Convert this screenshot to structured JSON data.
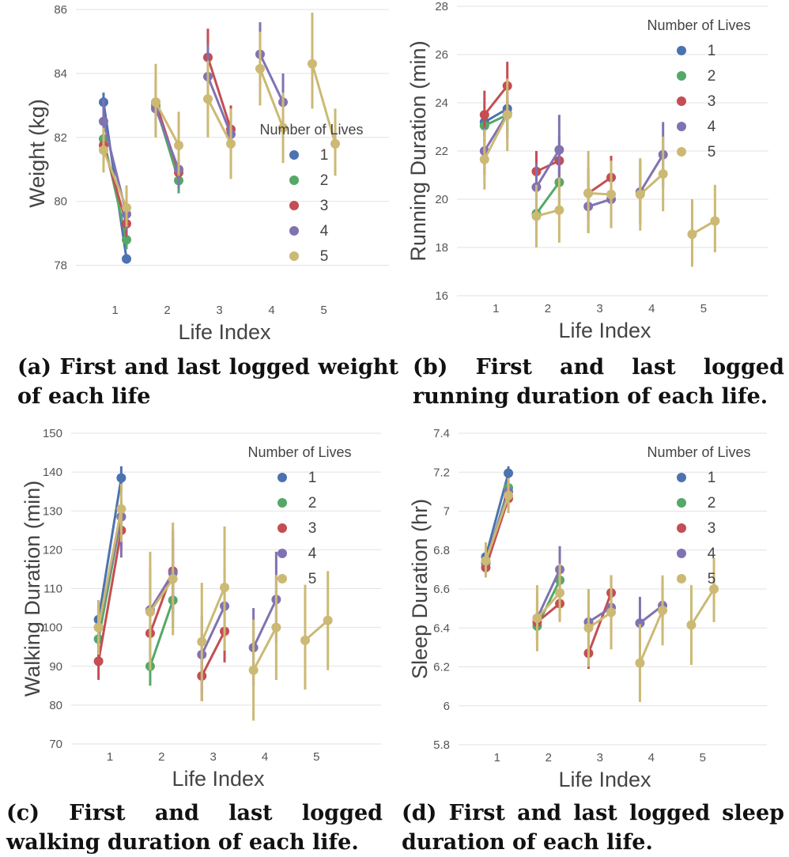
{
  "colors": [
    "#4c72b0",
    "#55a868",
    "#c44e52",
    "#8172b2",
    "#ccb974"
  ],
  "legend_title": "Number of Lives",
  "legend_labels": [
    "1",
    "2",
    "3",
    "4",
    "5"
  ],
  "chart_data": [
    {
      "type": "line",
      "xlabel": "Life Index",
      "ylabel": "Weight (kg)",
      "categories": [
        "1",
        "2",
        "3",
        "4",
        "5"
      ],
      "ylim": [
        77,
        86
      ],
      "yticks": [
        78,
        80,
        82,
        84,
        86
      ],
      "grid": "horizontal",
      "legend_position": "center-right",
      "caption": "(a) First and last logged weight of each life",
      "series": [
        {
          "name": "1",
          "segments": [
            {
              "life": 1,
              "first": [
                83.1,
                82.7,
                83.4
              ],
              "last": [
                78.2,
                78.05,
                78.35
              ]
            }
          ]
        },
        {
          "name": "2",
          "segments": [
            {
              "life": 1,
              "first": [
                81.95,
                81.6,
                82.3
              ],
              "last": [
                78.8,
                78.5,
                79.2
              ]
            },
            {
              "life": 2,
              "first": [
                83.0,
                82.2,
                83.9
              ],
              "last": [
                80.65,
                80.25,
                81.05
              ]
            }
          ]
        },
        {
          "name": "3",
          "segments": [
            {
              "life": 1,
              "first": [
                81.75,
                81.2,
                82.3
              ],
              "last": [
                79.3,
                78.9,
                79.7
              ]
            },
            {
              "life": 2,
              "first": [
                83.1,
                82.1,
                83.9
              ],
              "last": [
                80.9,
                80.5,
                81.3
              ]
            },
            {
              "life": 3,
              "first": [
                84.5,
                83.5,
                85.4
              ],
              "last": [
                82.25,
                81.5,
                83.0
              ]
            }
          ]
        },
        {
          "name": "4",
          "segments": [
            {
              "life": 1,
              "first": [
                82.5,
                81.8,
                83.2
              ],
              "last": [
                79.6,
                79.1,
                80.1
              ]
            },
            {
              "life": 2,
              "first": [
                82.9,
                82.0,
                83.8
              ],
              "last": [
                81.0,
                80.4,
                81.6
              ]
            },
            {
              "life": 3,
              "first": [
                83.9,
                82.9,
                84.9
              ],
              "last": [
                82.1,
                81.4,
                82.8
              ]
            },
            {
              "life": 4,
              "first": [
                84.6,
                83.6,
                85.6
              ],
              "last": [
                83.1,
                82.3,
                84.0
              ]
            }
          ]
        },
        {
          "name": "5",
          "segments": [
            {
              "life": 1,
              "first": [
                81.6,
                80.9,
                82.3
              ],
              "last": [
                79.8,
                79.2,
                80.5
              ]
            },
            {
              "life": 2,
              "first": [
                83.1,
                82.0,
                84.3
              ],
              "last": [
                81.75,
                80.8,
                82.8
              ]
            },
            {
              "life": 3,
              "first": [
                83.2,
                82.0,
                84.4
              ],
              "last": [
                81.8,
                80.7,
                82.9
              ]
            },
            {
              "life": 4,
              "first": [
                84.15,
                83.0,
                85.3
              ],
              "last": [
                82.3,
                81.2,
                83.4
              ]
            },
            {
              "life": 5,
              "first": [
                84.3,
                82.9,
                85.9
              ],
              "last": [
                81.8,
                80.8,
                82.9
              ]
            }
          ]
        }
      ]
    },
    {
      "type": "line",
      "xlabel": "Life Index",
      "ylabel": "Running Duration (min)",
      "categories": [
        "1",
        "2",
        "3",
        "4",
        "5"
      ],
      "ylim": [
        16,
        28
      ],
      "yticks": [
        16,
        18,
        20,
        22,
        24,
        26,
        28
      ],
      "grid": "horizontal",
      "legend_position": "top-right",
      "caption": "(b) First and last logged running duration of each life.",
      "series": [
        {
          "name": "1",
          "segments": [
            {
              "life": 1,
              "first": [
                23.2,
                22.8,
                23.6
              ],
              "last": [
                23.75,
                23.3,
                24.1
              ]
            }
          ]
        },
        {
          "name": "2",
          "segments": [
            {
              "life": 1,
              "first": [
                23.05,
                22.4,
                23.7
              ],
              "last": [
                23.5,
                22.8,
                24.1
              ]
            },
            {
              "life": 2,
              "first": [
                19.4,
                18.8,
                20.0
              ],
              "last": [
                20.7,
                19.5,
                21.9
              ]
            }
          ]
        },
        {
          "name": "3",
          "segments": [
            {
              "life": 1,
              "first": [
                23.5,
                22.6,
                24.5
              ],
              "last": [
                24.7,
                23.5,
                25.7
              ]
            },
            {
              "life": 2,
              "first": [
                21.15,
                20.3,
                22.0
              ],
              "last": [
                21.6,
                20.6,
                22.6
              ]
            },
            {
              "life": 3,
              "first": [
                20.25,
                19.2,
                21.3
              ],
              "last": [
                20.9,
                20.0,
                21.8
              ]
            }
          ]
        },
        {
          "name": "4",
          "segments": [
            {
              "life": 1,
              "first": [
                22.0,
                21.0,
                23.0
              ],
              "last": [
                23.55,
                22.5,
                24.5
              ]
            },
            {
              "life": 2,
              "first": [
                20.5,
                19.5,
                21.5
              ],
              "last": [
                22.05,
                20.6,
                23.5
              ]
            },
            {
              "life": 3,
              "first": [
                19.7,
                18.6,
                20.8
              ],
              "last": [
                20.0,
                18.9,
                21.1
              ]
            },
            {
              "life": 4,
              "first": [
                20.3,
                19.0,
                21.6
              ],
              "last": [
                21.85,
                20.5,
                23.2
              ]
            }
          ]
        },
        {
          "name": "5",
          "segments": [
            {
              "life": 1,
              "first": [
                21.65,
                20.4,
                22.9
              ],
              "last": [
                23.5,
                22.0,
                25.0
              ]
            },
            {
              "life": 2,
              "first": [
                19.3,
                18.0,
                20.6
              ],
              "last": [
                19.55,
                18.2,
                20.9
              ]
            },
            {
              "life": 3,
              "first": [
                20.25,
                18.6,
                22.0
              ],
              "last": [
                20.2,
                18.8,
                21.6
              ]
            },
            {
              "life": 4,
              "first": [
                20.2,
                18.7,
                21.7
              ],
              "last": [
                21.05,
                19.5,
                22.6
              ]
            },
            {
              "life": 5,
              "first": [
                18.55,
                17.2,
                20.0
              ],
              "last": [
                19.1,
                17.8,
                20.6
              ]
            }
          ]
        }
      ]
    },
    {
      "type": "line",
      "xlabel": "Life Index",
      "ylabel": "Walking Duration (min)",
      "categories": [
        "1",
        "2",
        "3",
        "4",
        "5"
      ],
      "ylim": [
        70,
        150
      ],
      "yticks": [
        70,
        80,
        90,
        100,
        110,
        120,
        130,
        140,
        150
      ],
      "grid": "horizontal",
      "legend_position": "top-right",
      "caption": "(c) First and last logged walking duration of each life.",
      "series": [
        {
          "name": "1",
          "segments": [
            {
              "life": 1,
              "first": [
                102.0,
                97.0,
                107.0
              ],
              "last": [
                138.5,
                135.0,
                141.5
              ]
            }
          ]
        },
        {
          "name": "2",
          "segments": [
            {
              "life": 1,
              "first": [
                97.0,
                92.0,
                102.0
              ],
              "last": [
                128.5,
                124.0,
                133.0
              ]
            },
            {
              "life": 2,
              "first": [
                90.0,
                85.0,
                95.0
              ],
              "last": [
                107.0,
                100.0,
                114.0
              ]
            }
          ]
        },
        {
          "name": "3",
          "segments": [
            {
              "life": 1,
              "first": [
                91.3,
                86.5,
                96.0
              ],
              "last": [
                125.0,
                120.0,
                130.0
              ]
            },
            {
              "life": 2,
              "first": [
                98.5,
                92.0,
                105.0
              ],
              "last": [
                114.5,
                106.0,
                123.0
              ]
            },
            {
              "life": 3,
              "first": [
                87.5,
                81.0,
                94.0
              ],
              "last": [
                99.0,
                91.0,
                107.0
              ]
            }
          ]
        },
        {
          "name": "4",
          "segments": [
            {
              "life": 1,
              "first": [
                100.0,
                94.0,
                106.0
              ],
              "last": [
                128.5,
                118.0,
                132.0
              ]
            },
            {
              "life": 2,
              "first": [
                104.5,
                93.0,
                115.5
              ],
              "last": [
                114.0,
                103.5,
                125.0
              ]
            },
            {
              "life": 3,
              "first": [
                93.0,
                83.0,
                103.0
              ],
              "last": [
                105.5,
                95.0,
                115.5
              ]
            },
            {
              "life": 4,
              "first": [
                94.8,
                85.0,
                105.0
              ],
              "last": [
                107.2,
                96.0,
                119.5
              ]
            }
          ]
        },
        {
          "name": "5",
          "segments": [
            {
              "life": 1,
              "first": [
                100.0,
                93.0,
                107.0
              ],
              "last": [
                130.5,
                122.0,
                137.0
              ]
            },
            {
              "life": 2,
              "first": [
                104.0,
                89.0,
                119.5
              ],
              "last": [
                112.5,
                98.0,
                127.0
              ]
            },
            {
              "life": 3,
              "first": [
                96.3,
                81.0,
                111.5
              ],
              "last": [
                110.3,
                94.0,
                126.0
              ]
            },
            {
              "life": 4,
              "first": [
                89.0,
                76.0,
                102.0
              ],
              "last": [
                100.0,
                86.5,
                113.5
              ]
            },
            {
              "life": 5,
              "first": [
                96.7,
                84.0,
                111.0
              ],
              "last": [
                101.8,
                89.0,
                114.5
              ]
            }
          ]
        }
      ]
    },
    {
      "type": "line",
      "xlabel": "Life Index",
      "ylabel": "Sleep Duration (hr)",
      "categories": [
        "1",
        "2",
        "3",
        "4",
        "5"
      ],
      "ylim": [
        5.8,
        7.4
      ],
      "yticks": [
        5.8,
        6.0,
        6.2,
        6.4,
        6.6,
        6.8,
        7.0,
        7.2,
        7.4
      ],
      "grid": "horizontal",
      "legend_position": "top-right",
      "caption": "(d) First and last logged sleep duration of each life.",
      "series": [
        {
          "name": "1",
          "segments": [
            {
              "life": 1,
              "first": [
                6.765,
                6.72,
                6.81
              ],
              "last": [
                7.195,
                7.16,
                7.23
              ]
            }
          ]
        },
        {
          "name": "2",
          "segments": [
            {
              "life": 1,
              "first": [
                6.73,
                6.68,
                6.78
              ],
              "last": [
                7.12,
                7.07,
                7.17
              ]
            },
            {
              "life": 2,
              "first": [
                6.41,
                6.33,
                6.49
              ],
              "last": [
                6.645,
                6.57,
                6.72
              ]
            }
          ]
        },
        {
          "name": "3",
          "segments": [
            {
              "life": 1,
              "first": [
                6.71,
                6.66,
                6.76
              ],
              "last": [
                7.065,
                7.01,
                7.12
              ]
            },
            {
              "life": 2,
              "first": [
                6.43,
                6.34,
                6.52
              ],
              "last": [
                6.525,
                6.44,
                6.61
              ]
            },
            {
              "life": 3,
              "first": [
                6.27,
                6.19,
                6.36
              ],
              "last": [
                6.58,
                6.49,
                6.67
              ]
            }
          ]
        },
        {
          "name": "4",
          "segments": [
            {
              "life": 1,
              "first": [
                6.74,
                6.67,
                6.81
              ],
              "last": [
                7.1,
                7.03,
                7.17
              ]
            },
            {
              "life": 2,
              "first": [
                6.45,
                6.34,
                6.56
              ],
              "last": [
                6.7,
                6.58,
                6.82
              ]
            },
            {
              "life": 3,
              "first": [
                6.43,
                6.31,
                6.55
              ],
              "last": [
                6.505,
                6.38,
                6.63
              ]
            },
            {
              "life": 4,
              "first": [
                6.425,
                6.29,
                6.56
              ],
              "last": [
                6.515,
                6.38,
                6.65
              ]
            }
          ]
        },
        {
          "name": "5",
          "segments": [
            {
              "life": 1,
              "first": [
                6.745,
                6.66,
                6.84
              ],
              "last": [
                7.08,
                6.99,
                7.17
              ]
            },
            {
              "life": 2,
              "first": [
                6.45,
                6.28,
                6.62
              ],
              "last": [
                6.58,
                6.43,
                6.73
              ]
            },
            {
              "life": 3,
              "first": [
                6.4,
                6.2,
                6.6
              ],
              "last": [
                6.48,
                6.29,
                6.67
              ]
            },
            {
              "life": 4,
              "first": [
                6.22,
                6.02,
                6.42
              ],
              "last": [
                6.49,
                6.31,
                6.67
              ]
            },
            {
              "life": 5,
              "first": [
                6.415,
                6.21,
                6.62
              ],
              "last": [
                6.6,
                6.43,
                6.76
              ]
            }
          ]
        }
      ]
    }
  ]
}
